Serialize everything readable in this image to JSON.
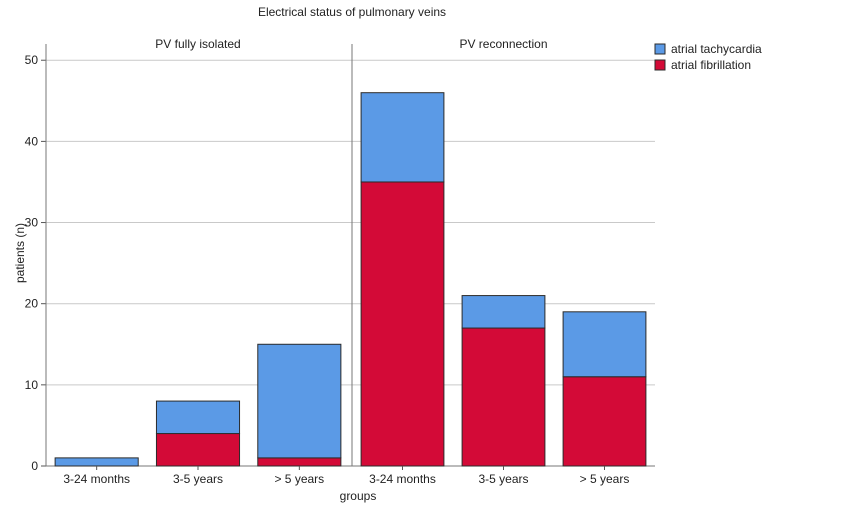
{
  "chart_data": {
    "type": "bar",
    "stacked": true,
    "title": "Electrical status of pulmonary veins",
    "xlabel": "groups",
    "ylabel": "patients (n)",
    "ylim": [
      0,
      52
    ],
    "yticks": [
      0,
      10,
      20,
      30,
      40,
      50
    ],
    "grid": true,
    "legend_position": "top-right",
    "categories": [
      "3-24 months",
      "3-5 years",
      "> 5 years"
    ],
    "panels": [
      {
        "title": "PV fully isolated",
        "series": [
          {
            "name": "atrial fibrillation",
            "values": [
              0,
              4,
              1
            ]
          },
          {
            "name": "atrial tachycardia",
            "values": [
              1,
              4,
              14
            ]
          }
        ]
      },
      {
        "title": "PV reconnection",
        "series": [
          {
            "name": "atrial fibrillation",
            "values": [
              35,
              17,
              11
            ]
          },
          {
            "name": "atrial tachycardia",
            "values": [
              11,
              4,
              8
            ]
          }
        ]
      }
    ],
    "legend": [
      {
        "name": "atrial tachycardia",
        "color": "#5b9ae6"
      },
      {
        "name": "atrial fibrillation",
        "color": "#d30a37"
      }
    ],
    "colors": {
      "atrial tachycardia": "#5b9ae6",
      "atrial fibrillation": "#d30a37"
    }
  }
}
